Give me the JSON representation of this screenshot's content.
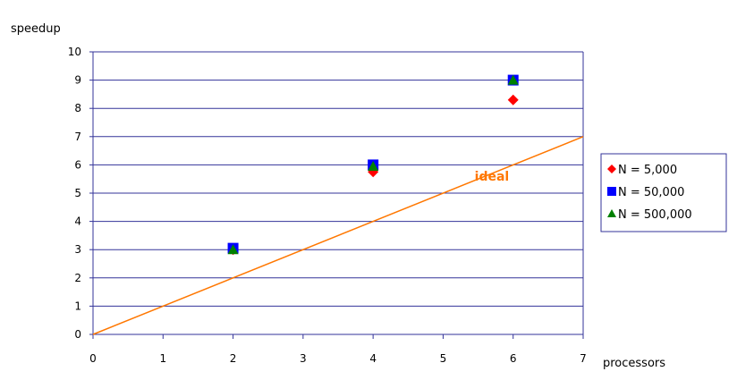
{
  "chart_data": {
    "type": "scatter",
    "title": "",
    "ylabel": "speedup",
    "xlabel": "processors",
    "xlim": [
      0,
      7
    ],
    "ylim": [
      0,
      10
    ],
    "x_ticks": [
      0,
      1,
      2,
      3,
      4,
      5,
      6,
      7
    ],
    "y_ticks": [
      0,
      1,
      2,
      3,
      4,
      5,
      6,
      7,
      8,
      9,
      10
    ],
    "grid": "horizontal",
    "legend_position": "right",
    "series": [
      {
        "name": "N = 5,000",
        "marker": "diamond",
        "color": "#ff0000",
        "points": [
          {
            "x": 2,
            "y": 3.0
          },
          {
            "x": 4,
            "y": 5.75
          },
          {
            "x": 6,
            "y": 8.3
          }
        ]
      },
      {
        "name": "N = 50,000",
        "marker": "square",
        "color": "#0000ff",
        "points": [
          {
            "x": 2,
            "y": 3.05
          },
          {
            "x": 4,
            "y": 6.0
          },
          {
            "x": 6,
            "y": 9.0
          }
        ]
      },
      {
        "name": "N = 500,000",
        "marker": "triangle",
        "color": "#008000",
        "points": [
          {
            "x": 2,
            "y": 3.0
          },
          {
            "x": 4,
            "y": 5.95
          },
          {
            "x": 6,
            "y": 9.0
          }
        ]
      }
    ],
    "reference_line": {
      "label": "ideal",
      "color": "#ff7700",
      "points": [
        {
          "x": 0,
          "y": 0
        },
        {
          "x": 7,
          "y": 7
        }
      ]
    },
    "colors": {
      "gridline": "#333399",
      "axis": "#333399",
      "legend_border": "#333399"
    }
  }
}
